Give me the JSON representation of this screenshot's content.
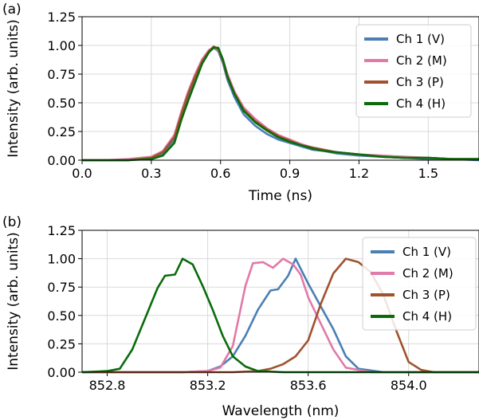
{
  "chart_data": [
    {
      "panel": "(a)",
      "type": "line",
      "xlabel": "Time (ns)",
      "ylabel": "Intensity (arb. units)",
      "xlim": [
        0.0,
        1.72
      ],
      "ylim": [
        0.0,
        1.25
      ],
      "xticks": [
        "0.0",
        "0.3",
        "0.6",
        "0.9",
        "1.2",
        "1.5"
      ],
      "yticks": [
        "0.00",
        "0.25",
        "0.50",
        "0.75",
        "1.00",
        "1.25"
      ],
      "grid": true,
      "legend": "top-right",
      "x": [
        0.0,
        0.1,
        0.2,
        0.3,
        0.35,
        0.4,
        0.43,
        0.46,
        0.49,
        0.52,
        0.55,
        0.57,
        0.59,
        0.61,
        0.63,
        0.66,
        0.7,
        0.75,
        0.8,
        0.85,
        0.9,
        0.95,
        1.0,
        1.05,
        1.1,
        1.2,
        1.3,
        1.4,
        1.5,
        1.6,
        1.72
      ],
      "series": [
        {
          "name": "Ch 1 (V)",
          "color": "#4a7fb5",
          "values": [
            0.0,
            0.0,
            0.0,
            0.02,
            0.06,
            0.18,
            0.38,
            0.55,
            0.7,
            0.85,
            0.95,
            0.98,
            0.95,
            0.85,
            0.7,
            0.55,
            0.4,
            0.3,
            0.23,
            0.18,
            0.15,
            0.12,
            0.09,
            0.08,
            0.06,
            0.04,
            0.03,
            0.02,
            0.01,
            0.01,
            0.0
          ]
        },
        {
          "name": "Ch 2 (M)",
          "color": "#e17aa8",
          "values": [
            0.0,
            0.0,
            0.01,
            0.03,
            0.08,
            0.22,
            0.42,
            0.6,
            0.75,
            0.88,
            0.96,
            0.98,
            0.96,
            0.88,
            0.75,
            0.6,
            0.46,
            0.36,
            0.28,
            0.22,
            0.18,
            0.14,
            0.11,
            0.09,
            0.07,
            0.05,
            0.04,
            0.03,
            0.02,
            0.01,
            0.01
          ]
        },
        {
          "name": "Ch 3 (P)",
          "color": "#a0522d",
          "values": [
            0.0,
            0.0,
            0.0,
            0.02,
            0.07,
            0.2,
            0.4,
            0.58,
            0.73,
            0.86,
            0.95,
            0.99,
            0.97,
            0.87,
            0.72,
            0.58,
            0.44,
            0.34,
            0.27,
            0.21,
            0.17,
            0.13,
            0.11,
            0.09,
            0.07,
            0.05,
            0.03,
            0.02,
            0.02,
            0.01,
            0.01
          ]
        },
        {
          "name": "Ch 4 (H)",
          "color": "#0a6b0a",
          "values": [
            0.0,
            0.0,
            0.0,
            0.01,
            0.04,
            0.15,
            0.35,
            0.52,
            0.68,
            0.84,
            0.94,
            0.98,
            0.98,
            0.88,
            0.73,
            0.58,
            0.43,
            0.33,
            0.26,
            0.2,
            0.16,
            0.13,
            0.1,
            0.08,
            0.07,
            0.05,
            0.03,
            0.02,
            0.02,
            0.01,
            0.01
          ]
        }
      ]
    },
    {
      "panel": "(b)",
      "type": "line",
      "xlabel": "Wavelength (nm)",
      "ylabel": "Intensity (arb. units)",
      "xlim": [
        852.7,
        854.28
      ],
      "ylim": [
        0.0,
        1.25
      ],
      "xticks": [
        "852.8",
        "853.2",
        "853.6",
        "854.0"
      ],
      "yticks": [
        "0.00",
        "0.25",
        "0.50",
        "0.75",
        "1.00",
        "1.25"
      ],
      "grid": true,
      "legend": "top-right",
      "series": [
        {
          "name": "Ch 1 (V)",
          "color": "#4a7fb5",
          "x": [
            852.7,
            853.1,
            853.2,
            853.25,
            853.3,
            853.35,
            853.4,
            853.45,
            853.48,
            853.52,
            853.55,
            853.6,
            853.65,
            853.7,
            853.75,
            853.8,
            853.9,
            854.28
          ],
          "y": [
            0.0,
            0.0,
            0.01,
            0.05,
            0.14,
            0.32,
            0.55,
            0.72,
            0.73,
            0.85,
            1.0,
            0.78,
            0.58,
            0.38,
            0.14,
            0.03,
            0.0,
            0.0
          ]
        },
        {
          "name": "Ch 2 (M)",
          "color": "#e17aa8",
          "x": [
            852.7,
            853.1,
            853.2,
            853.25,
            853.3,
            853.35,
            853.38,
            853.42,
            853.46,
            853.5,
            853.54,
            853.57,
            853.6,
            853.65,
            853.7,
            853.75,
            853.85,
            854.28
          ],
          "y": [
            0.0,
            0.0,
            0.01,
            0.04,
            0.23,
            0.76,
            0.96,
            0.97,
            0.92,
            1.0,
            0.95,
            0.86,
            0.66,
            0.43,
            0.2,
            0.04,
            0.0,
            0.0
          ]
        },
        {
          "name": "Ch 3 (P)",
          "color": "#a0522d",
          "x": [
            852.7,
            853.3,
            853.4,
            853.45,
            853.5,
            853.55,
            853.6,
            853.65,
            853.7,
            853.75,
            853.8,
            853.85,
            853.9,
            853.95,
            854.0,
            854.05,
            854.1,
            854.28
          ],
          "y": [
            0.0,
            0.0,
            0.01,
            0.03,
            0.07,
            0.14,
            0.28,
            0.6,
            0.87,
            1.0,
            0.97,
            0.88,
            0.68,
            0.37,
            0.09,
            0.02,
            0.0,
            0.0
          ]
        },
        {
          "name": "Ch 4 (H)",
          "color": "#0a6b0a",
          "x": [
            852.7,
            852.8,
            852.85,
            852.9,
            852.95,
            853.0,
            853.03,
            853.07,
            853.1,
            853.14,
            853.18,
            853.22,
            853.26,
            853.3,
            853.35,
            853.4,
            853.5,
            854.28
          ],
          "y": [
            0.0,
            0.01,
            0.03,
            0.2,
            0.47,
            0.74,
            0.85,
            0.86,
            1.0,
            0.95,
            0.76,
            0.55,
            0.32,
            0.14,
            0.05,
            0.01,
            0.0,
            0.0
          ]
        }
      ]
    }
  ]
}
